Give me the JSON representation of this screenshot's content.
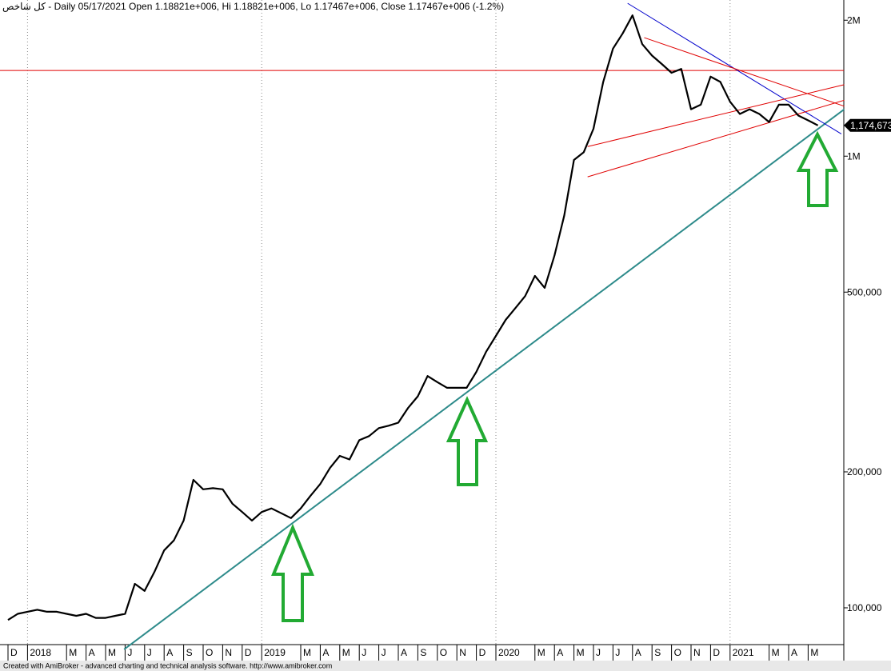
{
  "chart_data": {
    "type": "line",
    "title": "كل شاخص - Daily 05/17/2021 Open 1.18821e+006, Hi 1.18821e+006, Lo 1.17467e+006, Close 1.17467e+006 (-1.2%)",
    "footer": "Created with AmiBroker - advanced charting and technical analysis software. http://www.amibroker.com",
    "last_value_label": "1,174,673",
    "categories": [
      "D",
      null,
      "2018",
      null,
      null,
      null,
      "M",
      null,
      "A",
      null,
      "M",
      null,
      "J",
      null,
      "J",
      null,
      "A",
      null,
      "S",
      null,
      "O",
      null,
      "N",
      null,
      "D",
      null,
      "2019",
      null,
      null,
      null,
      "M",
      null,
      "A",
      null,
      "M",
      null,
      "J",
      null,
      "J",
      null,
      "A",
      null,
      "S",
      null,
      "O",
      null,
      "N",
      null,
      "D",
      null,
      "2020",
      null,
      null,
      null,
      "M",
      null,
      "A",
      null,
      "M",
      null,
      "J",
      null,
      "J",
      null,
      "A",
      null,
      "S",
      null,
      "O",
      null,
      "N",
      null,
      "D",
      null,
      "2021",
      null,
      null,
      null,
      "M",
      null,
      "A",
      null,
      "M",
      null
    ],
    "series": [
      {
        "color": "#000000",
        "values": [
          94000,
          97000,
          98000,
          99000,
          98000,
          98000,
          97000,
          96000,
          97000,
          95000,
          95000,
          96000,
          97000,
          113000,
          109000,
          120000,
          134000,
          141000,
          156000,
          192000,
          183000,
          184000,
          183000,
          170000,
          163000,
          156000,
          163000,
          166000,
          162000,
          158000,
          166000,
          177000,
          188000,
          204000,
          217000,
          213000,
          235000,
          240000,
          250000,
          253000,
          257000,
          277000,
          294000,
          326000,
          316000,
          307000,
          307000,
          307000,
          333000,
          369000,
          400000,
          434000,
          461000,
          490000,
          543000,
          511000,
          602000,
          738000,
          981000,
          1020000,
          1150000,
          1460000,
          1730000,
          1870000,
          2050000,
          1770000,
          1670000,
          1600000,
          1530000,
          1560000,
          1270000,
          1300000,
          1500000,
          1460000,
          1320000,
          1240000,
          1270000,
          1240000,
          1190000,
          1300000,
          1300000,
          1230000,
          1200000,
          1170000
        ]
      }
    ],
    "log_scale": true,
    "ylim": [
      76400,
      2217000
    ],
    "yticks": [
      {
        "value": 2000000,
        "label": "2M"
      },
      {
        "value": 1000000,
        "label": "1M"
      },
      {
        "value": 500000,
        "label": "500,000"
      },
      {
        "value": 200000,
        "label": "200,000"
      },
      {
        "value": 100000,
        "label": "100,000"
      }
    ],
    "hlines": [
      {
        "value": 1548000,
        "color": "#e00000"
      }
    ],
    "trendlines": [
      {
        "color": "#2e8b8b",
        "points": [
          [
            11.9,
            80900
          ],
          [
            85.7,
            1270000
          ]
        ]
      },
      {
        "color": "#0000cc",
        "points": [
          [
            63.5,
            2180000
          ],
          [
            85.4,
            1120000
          ]
        ]
      },
      {
        "color": "#e00000",
        "points": [
          [
            65.2,
            1830000
          ],
          [
            85.7,
            1290000
          ]
        ]
      },
      {
        "color": "#e00000",
        "points": [
          [
            59.4,
            1050000
          ],
          [
            85.7,
            1440000
          ]
        ]
      },
      {
        "color": "#e00000",
        "points": [
          [
            59.4,
            900000
          ],
          [
            85.7,
            1330000
          ]
        ]
      }
    ]
  }
}
